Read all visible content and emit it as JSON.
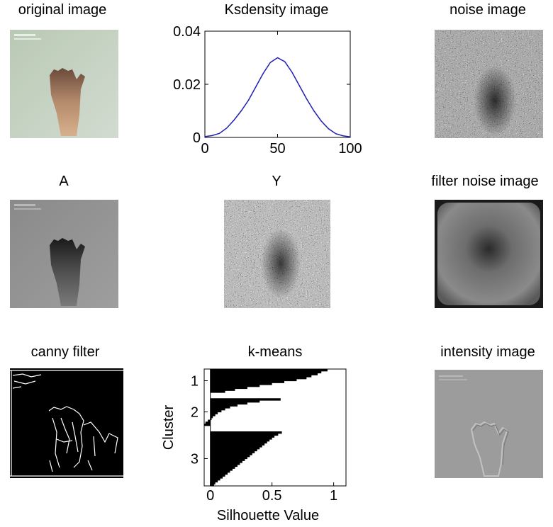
{
  "titles": {
    "original": "original image",
    "ksdensity": "Ksdensity image",
    "noise": "noise image",
    "a": "A",
    "y": "Y",
    "filter_noise": "filter noise image",
    "canny": "canny filter",
    "kmeans": "k-means",
    "intensity": "intensity image"
  },
  "chart_data": [
    {
      "type": "line",
      "title": "Ksdensity image",
      "xlim": [
        0,
        100
      ],
      "ylim": [
        0,
        0.04
      ],
      "xticks": [
        "0",
        "50",
        "100"
      ],
      "yticks": [
        "0",
        "0.02",
        "0.04"
      ],
      "line_color": "#1f1fb0",
      "x": [
        0,
        5,
        10,
        15,
        20,
        25,
        30,
        35,
        40,
        45,
        50,
        55,
        60,
        65,
        70,
        75,
        80,
        85,
        90,
        95,
        100
      ],
      "y": [
        0.0003,
        0.0007,
        0.0015,
        0.0035,
        0.0065,
        0.01,
        0.014,
        0.019,
        0.024,
        0.0282,
        0.03,
        0.0285,
        0.0245,
        0.0195,
        0.0145,
        0.01,
        0.0062,
        0.0033,
        0.0014,
        0.0006,
        0.0002
      ]
    },
    {
      "type": "bar",
      "orientation": "horizontal",
      "title": "k-means",
      "xlabel": "Silhouette Value",
      "ylabel": "Cluster",
      "xlim": [
        -0.05,
        1.1
      ],
      "xticks": [
        "0",
        "0.5",
        "1"
      ],
      "yticks": [
        "1",
        "2",
        "3"
      ],
      "bar_color": "#000000",
      "clusters": [
        {
          "label": "1",
          "values": [
            0.95,
            0.9,
            0.87,
            0.82,
            0.78,
            0.7,
            0.6,
            0.5,
            0.4,
            0.3,
            0.2,
            0.12
          ]
        },
        {
          "label": "2",
          "values": [
            0.57,
            0.4,
            0.3,
            0.22,
            0.16,
            0.12,
            0.09,
            0.06,
            0.04,
            0.02,
            0.01,
            -0.02,
            -0.04,
            -0.05
          ]
        },
        {
          "label": "3",
          "values": [
            0.58,
            0.55,
            0.52,
            0.5,
            0.48,
            0.46,
            0.44,
            0.42,
            0.4,
            0.38,
            0.36,
            0.34,
            0.32,
            0.3,
            0.28,
            0.26,
            0.24,
            0.22,
            0.2,
            0.18,
            0.16,
            0.14,
            0.12,
            0.1,
            0.08,
            0.06,
            0.04,
            0.03
          ]
        }
      ]
    }
  ]
}
